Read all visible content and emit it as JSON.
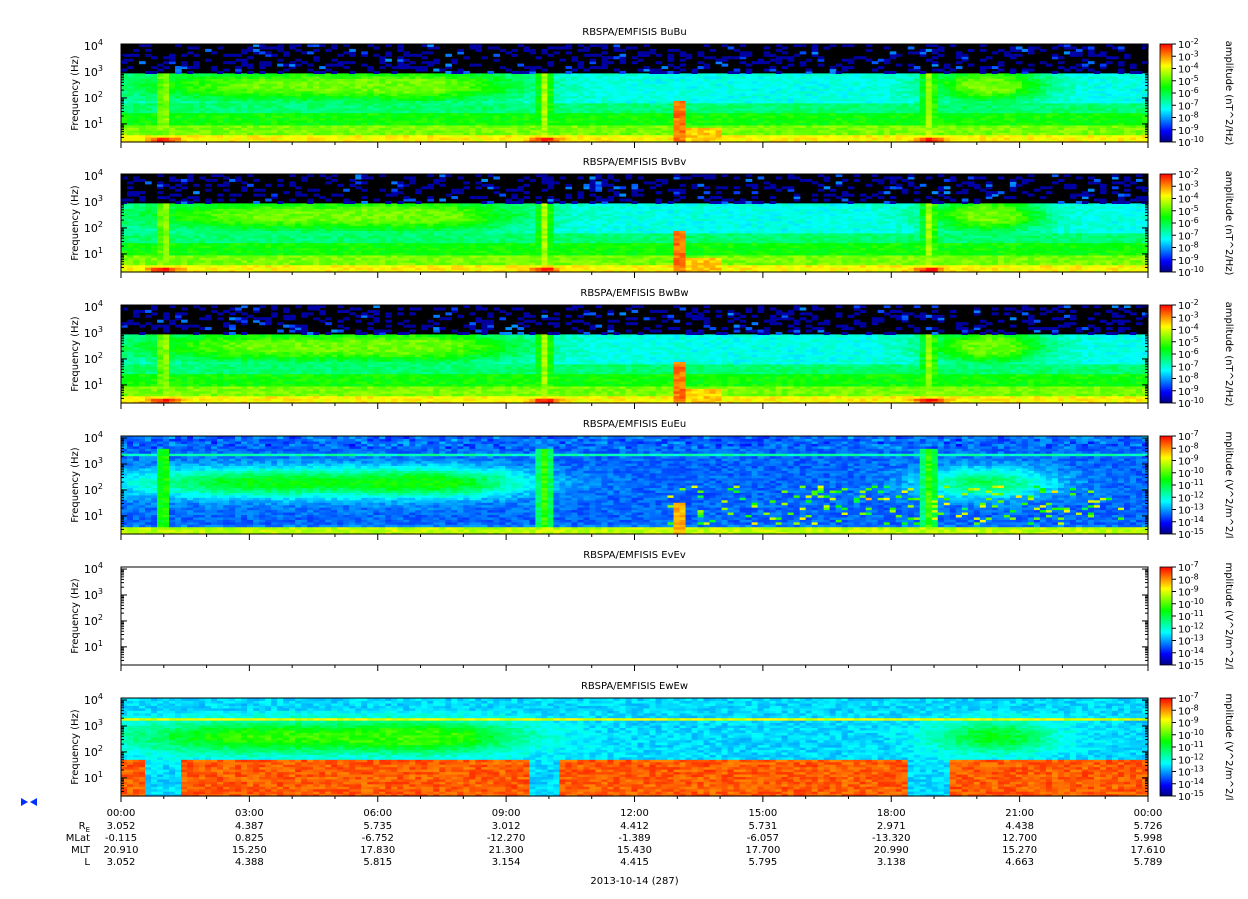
{
  "chart_data": {
    "type": "heatmap",
    "panels": [
      {
        "id": "bubu",
        "title": "RBSPA/EMFISIS  BuBu",
        "ylabel": "Frequency (Hz)",
        "cbar_label": "amplitude (nT^2/Hz)",
        "cbar_exponents": [
          "-2",
          "-3",
          "-4",
          "-5",
          "-6",
          "-7",
          "-8",
          "-9",
          "-10"
        ],
        "cbar_base": "10",
        "has_data": true,
        "kind": "B"
      },
      {
        "id": "bvbv",
        "title": "RBSPA/EMFISIS  BvBv",
        "ylabel": "Frequency (Hz)",
        "cbar_label": "amplitude (nT^2/Hz)",
        "cbar_exponents": [
          "-2",
          "-3",
          "-4",
          "-5",
          "-6",
          "-7",
          "-8",
          "-9",
          "-10"
        ],
        "cbar_base": "10",
        "has_data": true,
        "kind": "B"
      },
      {
        "id": "bwbw",
        "title": "RBSPA/EMFISIS  BwBw",
        "ylabel": "Frequency (Hz)",
        "cbar_label": "amplitude (nT^2/Hz)",
        "cbar_exponents": [
          "-2",
          "-3",
          "-4",
          "-5",
          "-6",
          "-7",
          "-8",
          "-9",
          "-10"
        ],
        "cbar_base": "10",
        "has_data": true,
        "kind": "B"
      },
      {
        "id": "eueu",
        "title": "RBSPA/EMFISIS  EuEu",
        "ylabel": "Frequency (Hz)",
        "cbar_label": "mplitude (V^2/m^2/l",
        "cbar_exponents": [
          "-7",
          "-8",
          "-9",
          "-10",
          "-11",
          "-12",
          "-13",
          "-14",
          "-15"
        ],
        "cbar_base": "10",
        "has_data": true,
        "kind": "E"
      },
      {
        "id": "evev",
        "title": "RBSPA/EMFISIS  EvEv",
        "ylabel": "Frequency (Hz)",
        "cbar_label": "mplitude (V^2/m^2/l",
        "cbar_exponents": [
          "-7",
          "-8",
          "-9",
          "-10",
          "-11",
          "-12",
          "-13",
          "-14",
          "-15"
        ],
        "cbar_base": "10",
        "has_data": false,
        "kind": "E"
      },
      {
        "id": "ewew",
        "title": "RBSPA/EMFISIS  EwEw",
        "ylabel": "Frequency (Hz)",
        "cbar_label": "mplitude (V^2/m^2/l",
        "cbar_exponents": [
          "-7",
          "-8",
          "-9",
          "-10",
          "-11",
          "-12",
          "-13",
          "-14",
          "-15"
        ],
        "cbar_base": "10",
        "has_data": true,
        "kind": "Ew"
      }
    ],
    "y_axis": {
      "scale": "log",
      "ylim": [
        2,
        12000
      ],
      "tick_base": "10",
      "tick_exponents": [
        "1",
        "2",
        "3",
        "4"
      ],
      "tick_values": [
        10,
        100,
        1000,
        10000
      ]
    },
    "x_axis": {
      "tick_labels": [
        "00:00",
        "03:00",
        "06:00",
        "09:00",
        "12:00",
        "15:00",
        "18:00",
        "21:00",
        "00:00"
      ],
      "range_hours": [
        0,
        24
      ]
    },
    "colormap": [
      "#000080",
      "#0000ff",
      "#0080ff",
      "#00ffff",
      "#00ff80",
      "#00ff00",
      "#80ff00",
      "#ffff00",
      "#ff8000",
      "#ff0000"
    ],
    "ephemeris": {
      "rows": [
        {
          "label": "R",
          "label_sub": "E",
          "values": [
            "3.052",
            "4.387",
            "5.735",
            "3.012",
            "4.412",
            "5.731",
            "2.971",
            "4.438",
            "5.726"
          ]
        },
        {
          "label": "MLat",
          "values": [
            "-0.115",
            "0.825",
            "-6.752",
            "-12.270",
            "-1.389",
            "-6.057",
            "-13.320",
            "12.700",
            "5.998"
          ]
        },
        {
          "label": "MLT",
          "values": [
            "20.910",
            "15.250",
            "17.830",
            "21.300",
            "15.430",
            "17.700",
            "20.990",
            "15.270",
            "17.610"
          ]
        },
        {
          "label": "L",
          "values": [
            "3.052",
            "4.388",
            "5.815",
            "3.154",
            "4.415",
            "5.795",
            "3.138",
            "4.663",
            "5.789"
          ]
        }
      ]
    },
    "date_label": "2013-10-14 (287)"
  }
}
